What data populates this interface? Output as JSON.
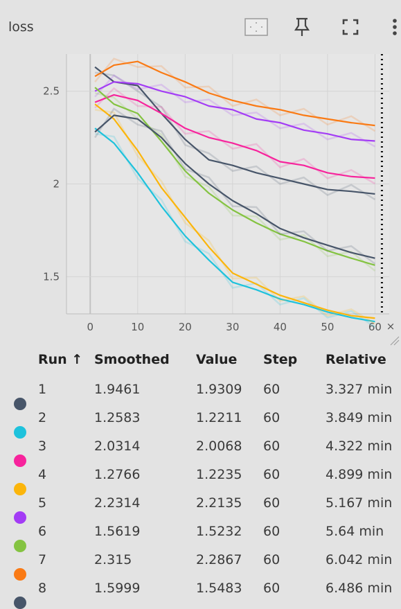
{
  "header": {
    "title": "loss",
    "icons": [
      "fit-domain-icon",
      "pin-icon",
      "fullscreen-icon",
      "more-vert-icon"
    ]
  },
  "colors": [
    "#475569",
    "#1ec2dc",
    "#f7239c",
    "#fbb50b",
    "#a33cf5",
    "#84c341",
    "#fa7a14",
    "#475569"
  ],
  "chart_data": {
    "type": "line",
    "x_ticks": [
      0,
      10,
      20,
      30,
      40,
      50,
      60
    ],
    "y_ticks": [
      1.5,
      2,
      2.5
    ],
    "xlim": [
      -5,
      63
    ],
    "ylim": [
      1.3,
      2.7
    ],
    "grid": true,
    "step_marker": 60,
    "series": [
      {
        "name": "1",
        "x": [
          1,
          5,
          10,
          15,
          20,
          25,
          30,
          35,
          40,
          45,
          50,
          55,
          60
        ],
        "smoothed": [
          2.63,
          2.55,
          2.53,
          2.38,
          2.24,
          2.13,
          2.1,
          2.06,
          2.03,
          2.0,
          1.97,
          1.96,
          1.9461
        ]
      },
      {
        "name": "2",
        "x": [
          1,
          5,
          10,
          15,
          20,
          25,
          30,
          35,
          40,
          45,
          50,
          55,
          60
        ],
        "smoothed": [
          2.3,
          2.22,
          2.06,
          1.88,
          1.72,
          1.59,
          1.47,
          1.43,
          1.38,
          1.35,
          1.31,
          1.28,
          1.2583
        ]
      },
      {
        "name": "3",
        "x": [
          1,
          5,
          10,
          15,
          20,
          25,
          30,
          35,
          40,
          45,
          50,
          55,
          60
        ],
        "smoothed": [
          2.44,
          2.48,
          2.45,
          2.38,
          2.3,
          2.25,
          2.22,
          2.18,
          2.12,
          2.1,
          2.06,
          2.04,
          2.0314
        ]
      },
      {
        "name": "4",
        "x": [
          1,
          5,
          10,
          15,
          20,
          25,
          30,
          35,
          40,
          45,
          50,
          55,
          60
        ],
        "smoothed": [
          2.43,
          2.35,
          2.18,
          1.98,
          1.82,
          1.66,
          1.52,
          1.46,
          1.4,
          1.36,
          1.32,
          1.29,
          1.2766
        ]
      },
      {
        "name": "5",
        "x": [
          1,
          5,
          10,
          15,
          20,
          25,
          30,
          35,
          40,
          45,
          50,
          55,
          60
        ],
        "smoothed": [
          2.5,
          2.55,
          2.54,
          2.5,
          2.47,
          2.42,
          2.4,
          2.35,
          2.33,
          2.29,
          2.27,
          2.24,
          2.2314
        ]
      },
      {
        "name": "6",
        "x": [
          1,
          5,
          10,
          15,
          20,
          25,
          30,
          35,
          40,
          45,
          50,
          55,
          60
        ],
        "smoothed": [
          2.52,
          2.43,
          2.38,
          2.23,
          2.07,
          1.95,
          1.86,
          1.79,
          1.73,
          1.69,
          1.64,
          1.6,
          1.5619
        ]
      },
      {
        "name": "7",
        "x": [
          1,
          5,
          10,
          15,
          20,
          25,
          30,
          35,
          40,
          45,
          50,
          55,
          60
        ],
        "smoothed": [
          2.58,
          2.64,
          2.66,
          2.6,
          2.55,
          2.49,
          2.45,
          2.42,
          2.4,
          2.37,
          2.35,
          2.33,
          2.315
        ]
      },
      {
        "name": "8",
        "x": [
          1,
          5,
          10,
          15,
          20,
          25,
          30,
          35,
          40,
          45,
          50,
          55,
          60
        ],
        "smoothed": [
          2.28,
          2.37,
          2.35,
          2.25,
          2.11,
          2.0,
          1.91,
          1.84,
          1.76,
          1.71,
          1.67,
          1.63,
          1.5999
        ]
      }
    ]
  },
  "table": {
    "headers": {
      "run": "Run ↑",
      "smoothed": "Smoothed",
      "value": "Value",
      "step": "Step",
      "relative": "Relative"
    },
    "rows": [
      {
        "run": "1",
        "smoothed": "1.9461",
        "value": "1.9309",
        "step": "60",
        "relative": "3.327 min"
      },
      {
        "run": "2",
        "smoothed": "1.2583",
        "value": "1.2211",
        "step": "60",
        "relative": "3.849 min"
      },
      {
        "run": "3",
        "smoothed": "2.0314",
        "value": "2.0068",
        "step": "60",
        "relative": "4.322 min"
      },
      {
        "run": "4",
        "smoothed": "1.2766",
        "value": "1.2235",
        "step": "60",
        "relative": "4.899 min"
      },
      {
        "run": "5",
        "smoothed": "2.2314",
        "value": "2.2135",
        "step": "60",
        "relative": "5.167 min"
      },
      {
        "run": "6",
        "smoothed": "1.5619",
        "value": "1.5232",
        "step": "60",
        "relative": "5.64 min"
      },
      {
        "run": "7",
        "smoothed": "2.315",
        "value": "2.2867",
        "step": "60",
        "relative": "6.042 min"
      },
      {
        "run": "8",
        "smoothed": "1.5999",
        "value": "1.5483",
        "step": "60",
        "relative": "6.486 min"
      }
    ]
  }
}
